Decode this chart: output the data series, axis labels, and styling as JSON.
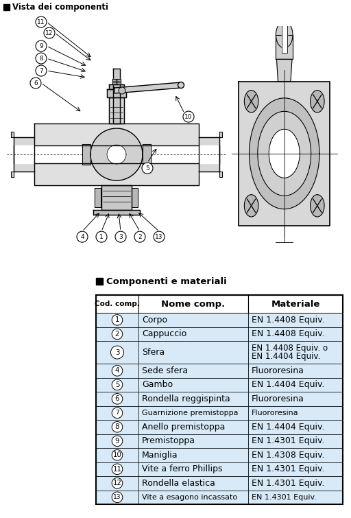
{
  "title_top": "Vista dei componenti",
  "table_title": "Componenti e materiali",
  "header": [
    "Cod. comp.",
    "Nome comp.",
    "Materiale"
  ],
  "rows": [
    [
      "1",
      "Corpo",
      "EN 1.4408 Equiv."
    ],
    [
      "2",
      "Cappuccio",
      "EN 1.4408 Equiv."
    ],
    [
      "3",
      "Sfera",
      "EN 1.4408 Equiv. o\nEN 1.4404 Equiv."
    ],
    [
      "4",
      "Sede sfera",
      "Fluororesina"
    ],
    [
      "5",
      "Gambo",
      "EN 1.4404 Equiv."
    ],
    [
      "6",
      "Rondella reggispinta",
      "Fluororesina"
    ],
    [
      "7",
      "Guarnizione premistoppa",
      "Fluororesina"
    ],
    [
      "8",
      "Anello premistoppa",
      "EN 1.4404 Equiv."
    ],
    [
      "9",
      "Premistoppa",
      "EN 1.4301 Equiv."
    ],
    [
      "10",
      "Maniglia",
      "EN 1.4308 Equiv."
    ],
    [
      "11",
      "Vite a ferro Phillips",
      "EN 1.4301 Equiv."
    ],
    [
      "12",
      "Rondella elastica",
      "EN 1.4301 Equiv."
    ],
    [
      "13",
      "Vite a esagono incassato",
      "EN 1.4301 Equiv."
    ]
  ],
  "row_font_sizes": [
    9,
    9,
    9,
    9,
    9,
    9,
    8,
    9,
    9,
    9,
    9,
    9,
    8
  ],
  "row_heights_rel": [
    1.0,
    1.0,
    1.6,
    1.0,
    1.0,
    1.0,
    1.0,
    1.0,
    1.0,
    1.0,
    1.0,
    1.0,
    1.0
  ],
  "bg_color": "#ffffff",
  "row_bg": "#d8eaf7",
  "header_bg": "#ffffff",
  "table_border": "#000000",
  "text_color": "#000000",
  "fig_width": 5.12,
  "fig_height": 7.55,
  "dpi": 100
}
